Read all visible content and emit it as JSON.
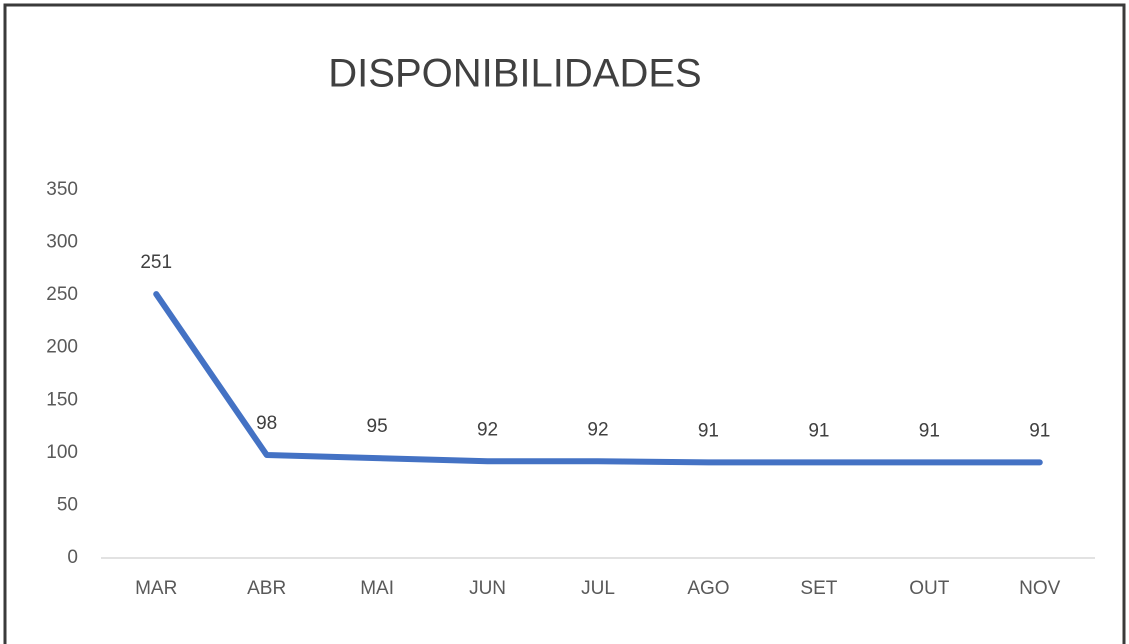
{
  "chart_data": {
    "type": "line",
    "title": "DISPONIBILIDADES",
    "categories": [
      "MAR",
      "ABR",
      "MAI",
      "JUN",
      "JUL",
      "AGO",
      "SET",
      "OUT",
      "NOV"
    ],
    "values": [
      251,
      98,
      95,
      92,
      92,
      91,
      91,
      91,
      91
    ],
    "color": "#4472c4",
    "ylim": [
      0,
      350
    ],
    "yticks": [
      0,
      50,
      100,
      150,
      200,
      250,
      300,
      350
    ],
    "grid": false
  }
}
